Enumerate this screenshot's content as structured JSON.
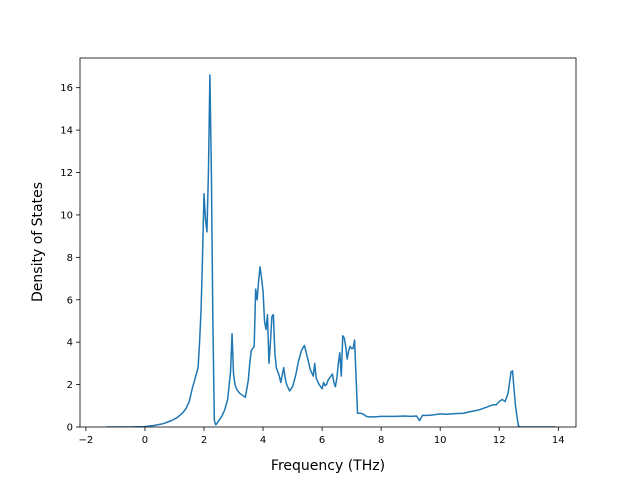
{
  "chart_data": {
    "type": "line",
    "title": "",
    "xlabel": "Frequency (THz)",
    "ylabel": "Density of States",
    "xlim": [
      -2.2,
      14.6
    ],
    "ylim": [
      0,
      17.4
    ],
    "x_ticks": [
      -2,
      0,
      2,
      4,
      6,
      8,
      10,
      12,
      14
    ],
    "y_ticks": [
      0,
      2,
      4,
      6,
      8,
      10,
      12,
      14,
      16
    ],
    "x_tick_labels": [
      "−2",
      "0",
      "2",
      "4",
      "6",
      "8",
      "10",
      "12",
      "14"
    ],
    "y_tick_labels": [
      "0",
      "2",
      "4",
      "6",
      "8",
      "10",
      "12",
      "14",
      "16"
    ],
    "grid": false,
    "legend": "none",
    "line_color": "#1f77b4",
    "series": [
      {
        "x": [
          -1.3,
          -1.0,
          -0.5,
          0.0,
          0.3,
          0.6,
          0.9,
          1.1,
          1.3,
          1.4,
          1.5,
          1.6,
          1.7,
          1.8,
          1.85,
          1.9,
          1.95,
          2.0,
          2.05,
          2.1,
          2.15,
          2.2,
          2.25,
          2.3,
          2.35,
          2.4,
          2.45,
          2.5,
          2.6,
          2.7,
          2.8,
          2.9,
          2.95,
          3.0,
          3.05,
          3.1,
          3.2,
          3.3,
          3.4,
          3.5,
          3.55,
          3.6,
          3.7,
          3.75,
          3.8,
          3.85,
          3.9,
          3.95,
          4.0,
          4.05,
          4.1,
          4.15,
          4.2,
          4.25,
          4.3,
          4.35,
          4.4,
          4.45,
          4.5,
          4.55,
          4.6,
          4.7,
          4.75,
          4.8,
          4.9,
          5.0,
          5.1,
          5.2,
          5.3,
          5.4,
          5.5,
          5.6,
          5.7,
          5.75,
          5.8,
          5.9,
          6.0,
          6.05,
          6.1,
          6.15,
          6.2,
          6.3,
          6.35,
          6.4,
          6.45,
          6.5,
          6.55,
          6.6,
          6.65,
          6.7,
          6.75,
          6.8,
          6.85,
          6.9,
          6.95,
          7.0,
          7.05,
          7.1,
          7.15,
          7.2,
          7.3,
          7.4,
          7.5,
          7.6,
          7.8,
          8.0,
          8.5,
          8.8,
          9.0,
          9.2,
          9.3,
          9.4,
          9.6,
          9.8,
          10.0,
          10.2,
          10.5,
          10.8,
          11.0,
          11.3,
          11.5,
          11.7,
          11.8,
          11.9,
          12.0,
          12.1,
          12.2,
          12.3,
          12.4,
          12.45,
          12.5,
          12.55,
          12.6,
          12.65,
          12.7,
          13.0,
          13.5,
          13.9
        ],
        "y": [
          0.0,
          0.0,
          0.0,
          0.02,
          0.07,
          0.15,
          0.3,
          0.45,
          0.7,
          0.9,
          1.2,
          1.8,
          2.3,
          2.8,
          4.0,
          5.5,
          8.0,
          11.0,
          9.8,
          9.2,
          12.0,
          16.6,
          12.0,
          5.0,
          0.3,
          0.1,
          0.2,
          0.3,
          0.5,
          0.8,
          1.3,
          2.6,
          4.4,
          2.5,
          2.0,
          1.8,
          1.6,
          1.5,
          1.4,
          2.2,
          3.0,
          3.6,
          3.8,
          6.5,
          6.0,
          6.9,
          7.55,
          7.0,
          6.4,
          5.0,
          4.6,
          5.3,
          3.0,
          4.0,
          5.2,
          5.3,
          3.5,
          2.8,
          2.6,
          2.4,
          2.1,
          2.8,
          2.3,
          2.0,
          1.7,
          1.9,
          2.4,
          3.1,
          3.6,
          3.85,
          3.3,
          2.7,
          2.4,
          3.0,
          2.3,
          2.0,
          1.8,
          2.1,
          1.95,
          2.0,
          2.2,
          2.4,
          2.5,
          2.1,
          1.9,
          2.3,
          3.0,
          3.5,
          2.4,
          4.3,
          4.2,
          3.8,
          3.2,
          3.6,
          3.8,
          3.7,
          3.7,
          4.1,
          2.4,
          0.65,
          0.65,
          0.6,
          0.5,
          0.48,
          0.48,
          0.5,
          0.5,
          0.52,
          0.5,
          0.52,
          0.3,
          0.55,
          0.55,
          0.58,
          0.62,
          0.6,
          0.63,
          0.65,
          0.72,
          0.8,
          0.9,
          1.0,
          1.05,
          1.05,
          1.2,
          1.3,
          1.2,
          1.6,
          2.6,
          2.65,
          1.8,
          1.0,
          0.5,
          0.05,
          0.0,
          0.0,
          0.0,
          0.0
        ]
      }
    ]
  }
}
